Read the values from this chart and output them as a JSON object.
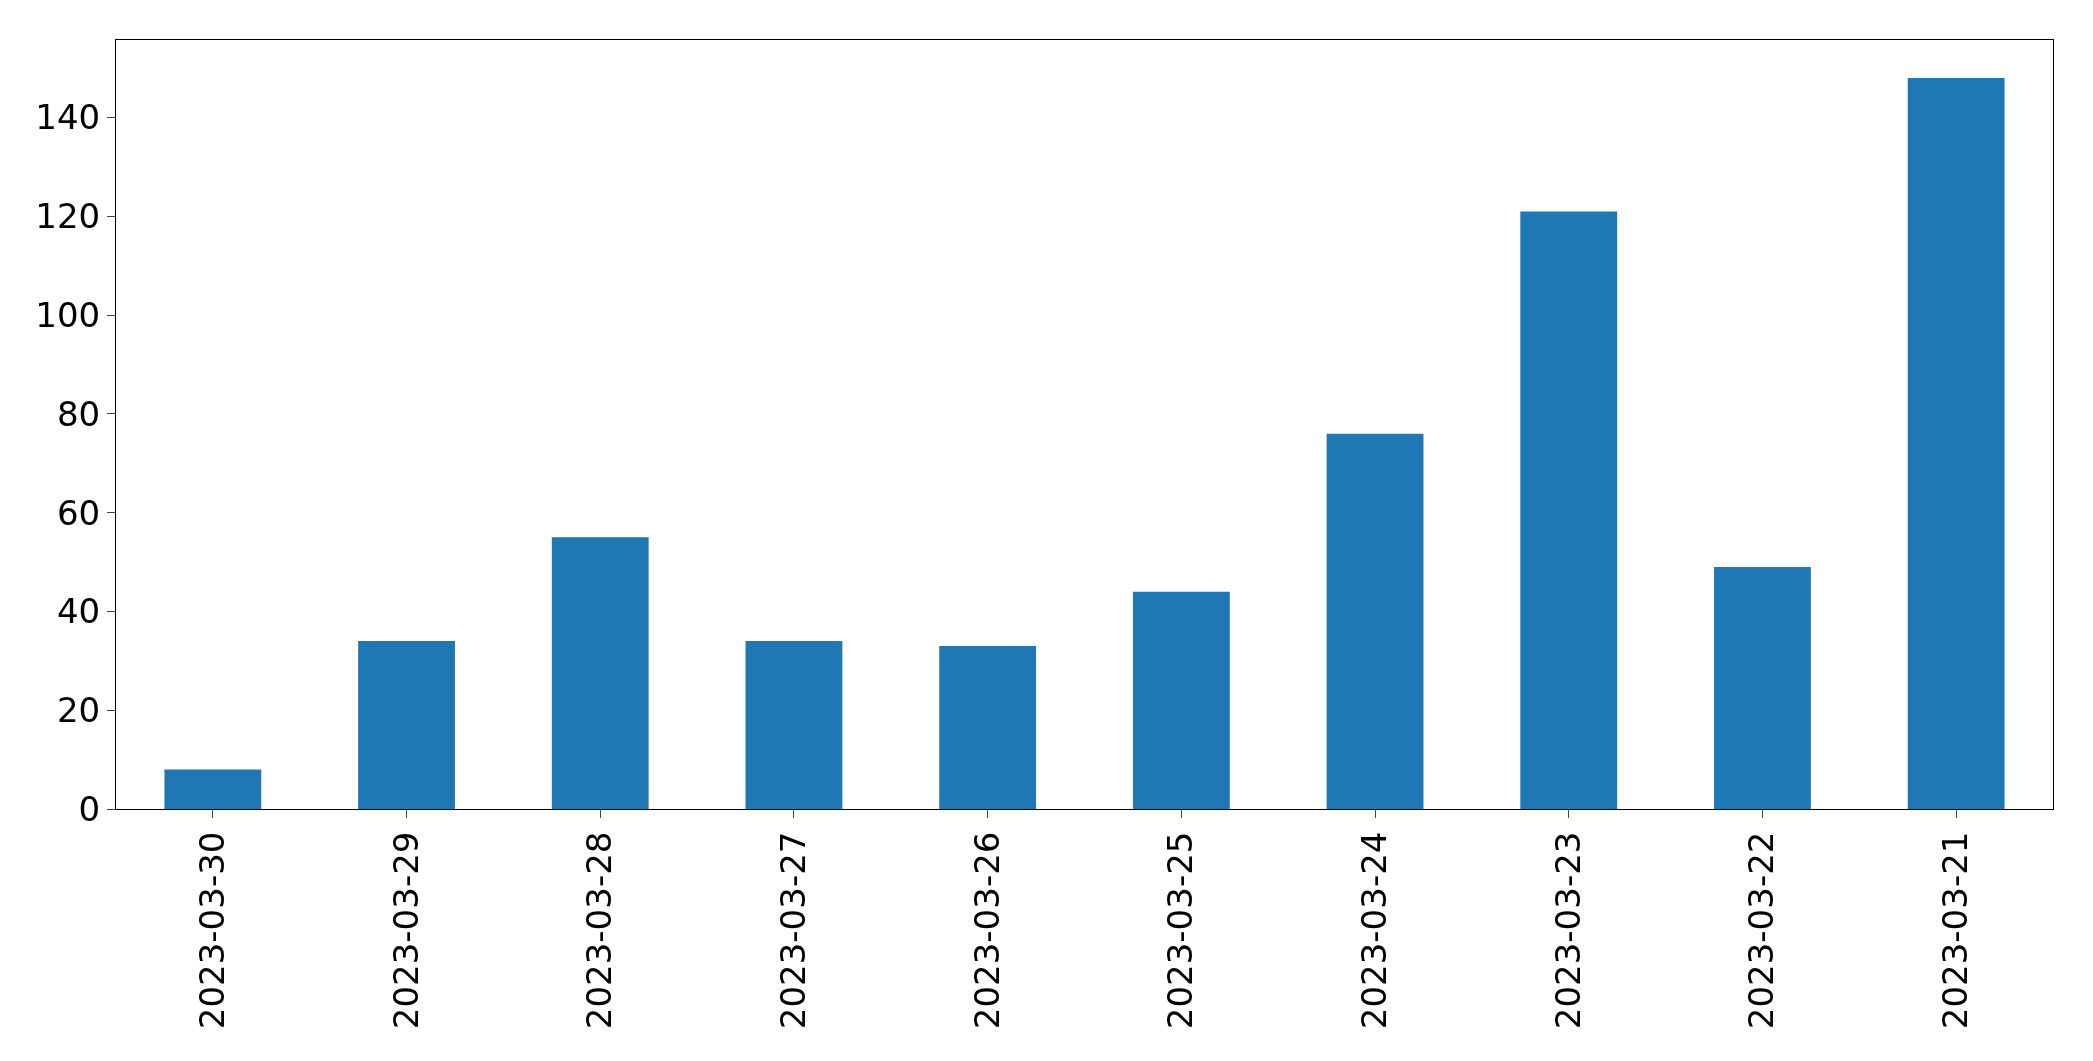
{
  "chart_data": {
    "type": "bar",
    "categories": [
      "2023-03-30",
      "2023-03-29",
      "2023-03-28",
      "2023-03-27",
      "2023-03-26",
      "2023-03-25",
      "2023-03-24",
      "2023-03-23",
      "2023-03-22",
      "2023-03-21"
    ],
    "values": [
      8,
      34,
      55,
      34,
      33,
      44,
      76,
      121,
      49,
      148
    ],
    "color": "#1f77b4",
    "ylim": [
      0,
      155.7
    ],
    "yticks": [
      0,
      20,
      40,
      60,
      80,
      100,
      120,
      140
    ]
  }
}
